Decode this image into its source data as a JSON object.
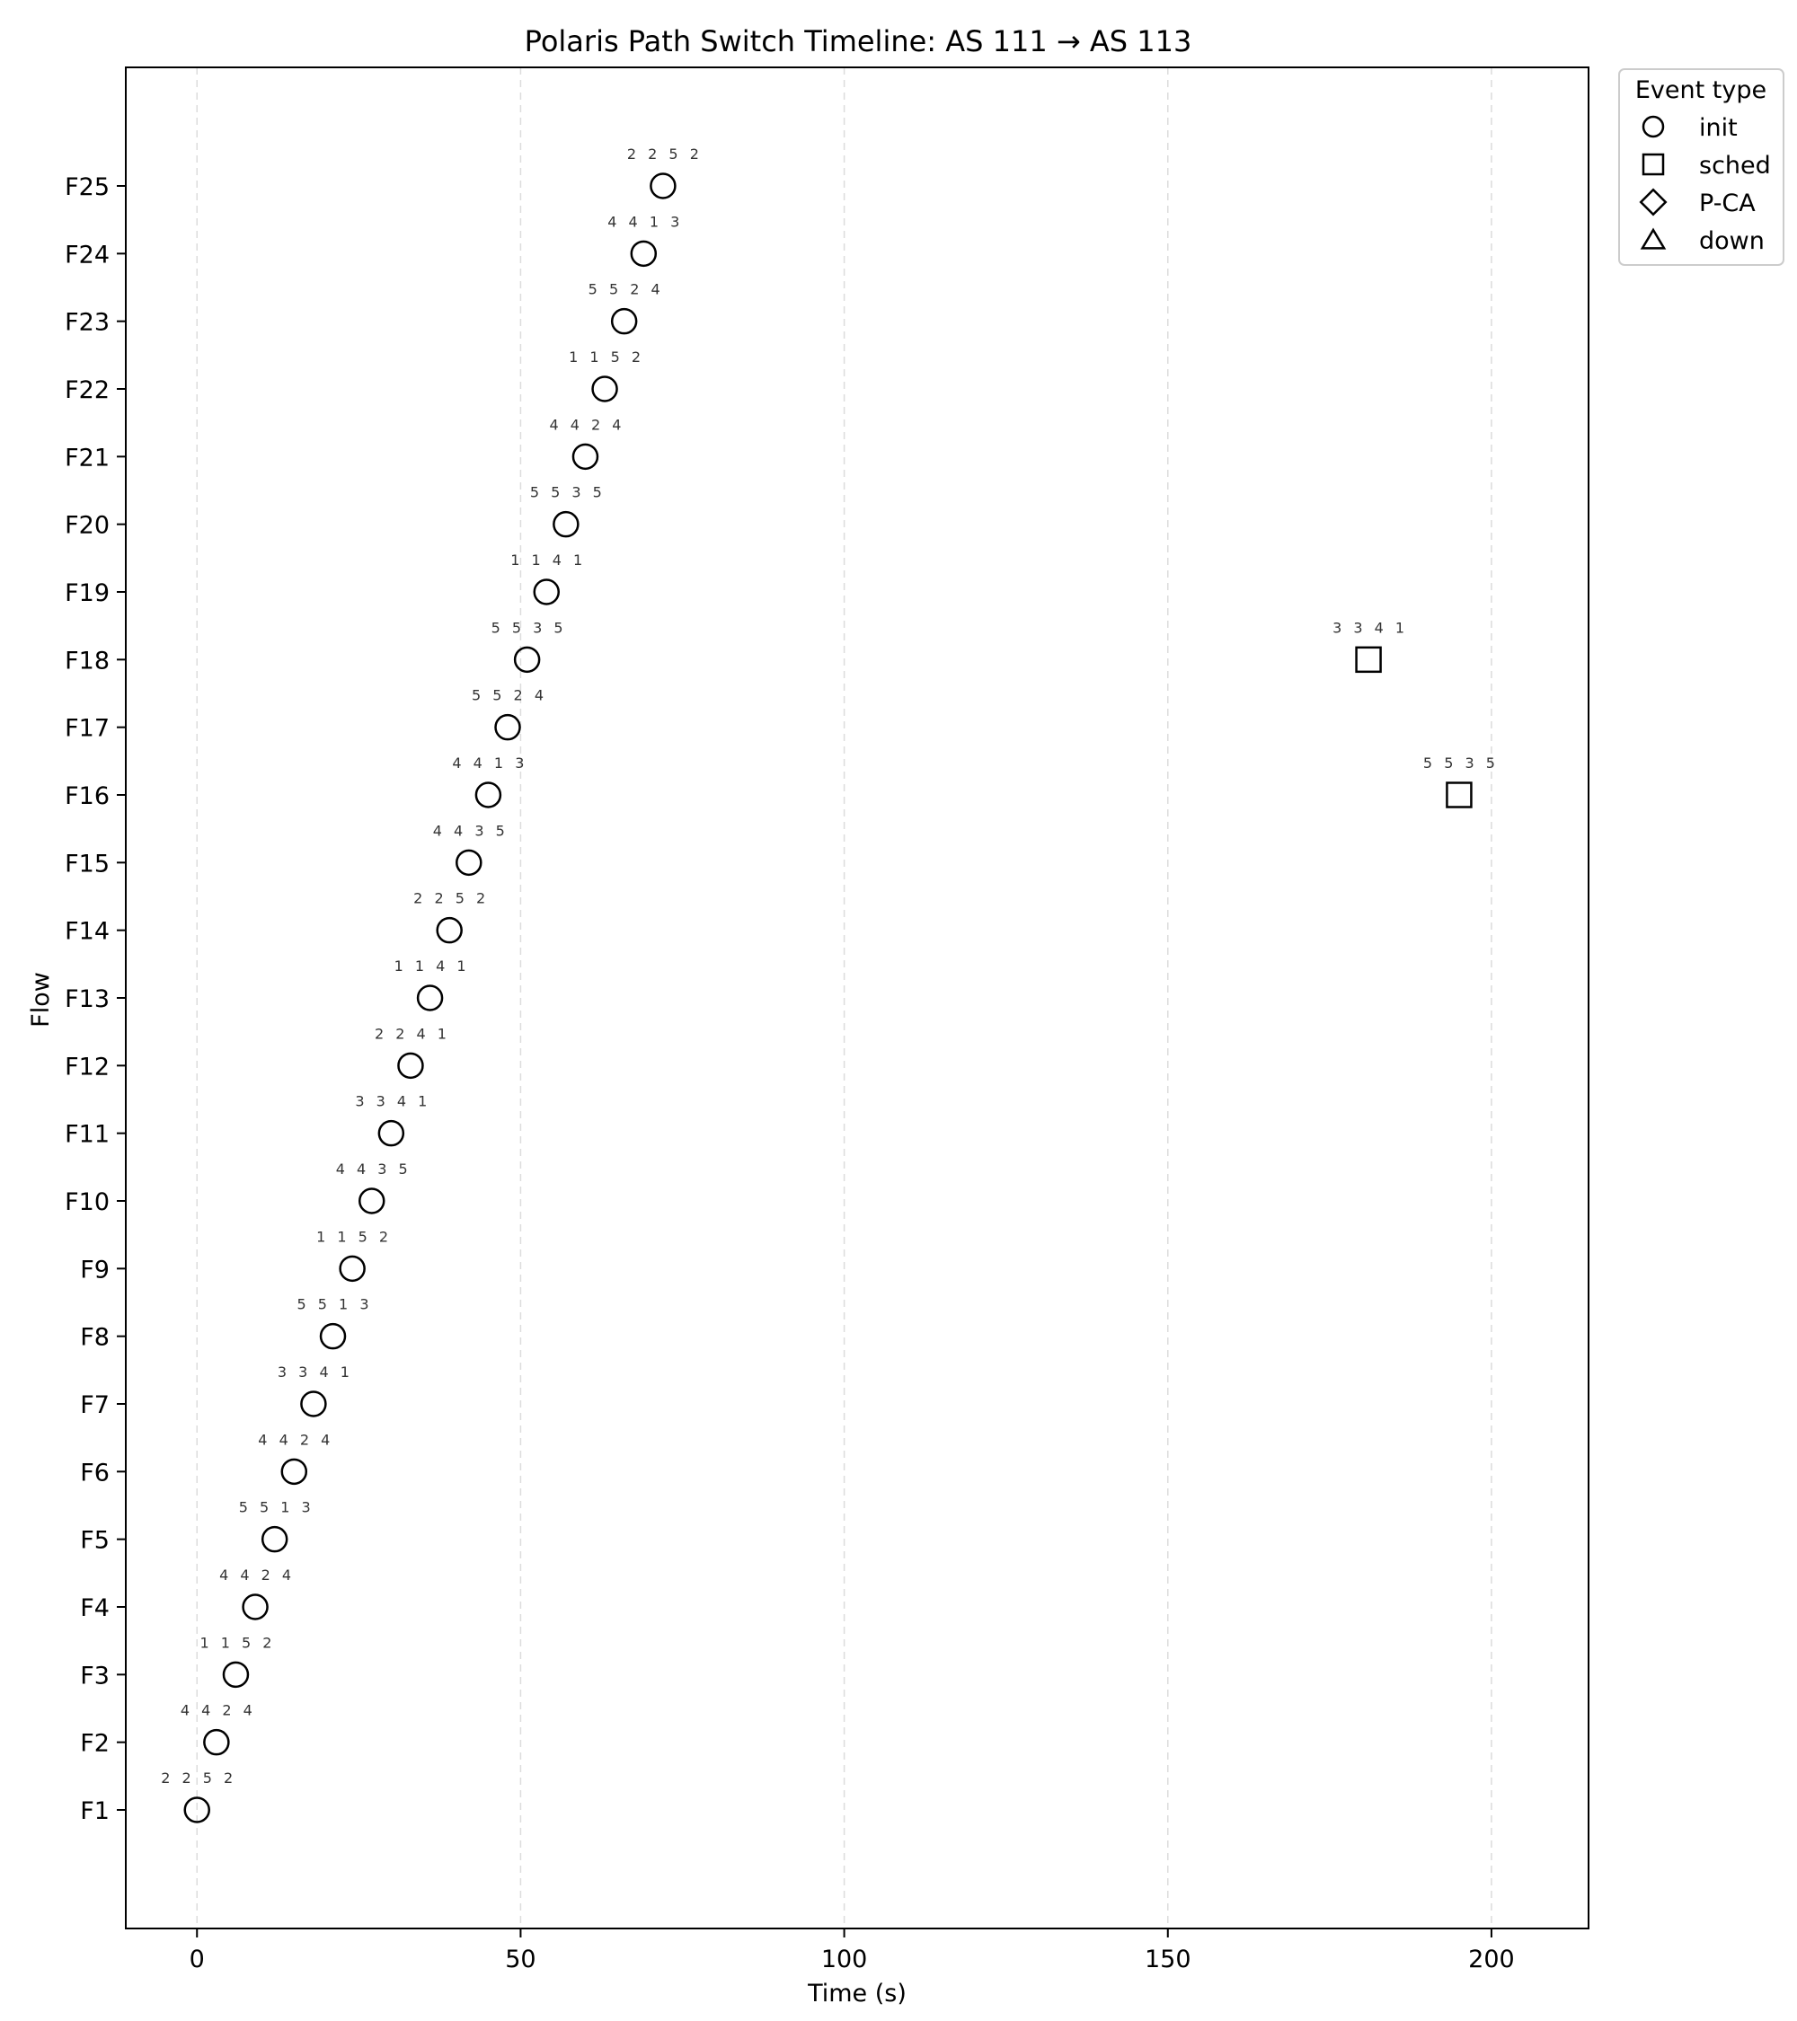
{
  "chart_data": {
    "type": "scatter",
    "title": "Polaris Path Switch Timeline: AS 111 → AS 113",
    "xlabel": "Time (s)",
    "ylabel": "Flow",
    "xlim": [
      -11,
      215
    ],
    "xticks": [
      0,
      50,
      100,
      150,
      200
    ],
    "xtick_labels": [
      "0",
      "50",
      "100",
      "150",
      "200"
    ],
    "grid": "vertical dashed",
    "flows": [
      "F1",
      "F2",
      "F3",
      "F4",
      "F5",
      "F6",
      "F7",
      "F8",
      "F9",
      "F10",
      "F11",
      "F12",
      "F13",
      "F14",
      "F15",
      "F16",
      "F17",
      "F18",
      "F19",
      "F20",
      "F21",
      "F22",
      "F23",
      "F24",
      "F25"
    ],
    "legend": {
      "title": "Event type",
      "placement": "outside-top-right",
      "entries": [
        {
          "label": "init",
          "marker": "circle"
        },
        {
          "label": "sched",
          "marker": "square"
        },
        {
          "label": "P-CA",
          "marker": "diamond"
        },
        {
          "label": "down",
          "marker": "triangle"
        }
      ]
    },
    "series": [
      {
        "name": "init",
        "marker": "circle",
        "points": [
          {
            "x": 0,
            "flow": "F1",
            "label": "2 2 5 2"
          },
          {
            "x": 3,
            "flow": "F2",
            "label": "4 4 2 4"
          },
          {
            "x": 6,
            "flow": "F3",
            "label": "1 1 5 2"
          },
          {
            "x": 9,
            "flow": "F4",
            "label": "4 4 2 4"
          },
          {
            "x": 12,
            "flow": "F5",
            "label": "5 5 1 3"
          },
          {
            "x": 15,
            "flow": "F6",
            "label": "4 4 2 4"
          },
          {
            "x": 18,
            "flow": "F7",
            "label": "3 3 4 1"
          },
          {
            "x": 21,
            "flow": "F8",
            "label": "5 5 1 3"
          },
          {
            "x": 24,
            "flow": "F9",
            "label": "1 1 5 2"
          },
          {
            "x": 27,
            "flow": "F10",
            "label": "4 4 3 5"
          },
          {
            "x": 30,
            "flow": "F11",
            "label": "3 3 4 1"
          },
          {
            "x": 33,
            "flow": "F12",
            "label": "2 2 4 1"
          },
          {
            "x": 36,
            "flow": "F13",
            "label": "1 1 4 1"
          },
          {
            "x": 39,
            "flow": "F14",
            "label": "2 2 5 2"
          },
          {
            "x": 42,
            "flow": "F15",
            "label": "4 4 3 5"
          },
          {
            "x": 45,
            "flow": "F16",
            "label": "4 4 1 3"
          },
          {
            "x": 48,
            "flow": "F17",
            "label": "5 5 2 4"
          },
          {
            "x": 51,
            "flow": "F18",
            "label": "5 5 3 5"
          },
          {
            "x": 54,
            "flow": "F19",
            "label": "1 1 4 1"
          },
          {
            "x": 57,
            "flow": "F20",
            "label": "5 5 3 5"
          },
          {
            "x": 60,
            "flow": "F21",
            "label": "4 4 2 4"
          },
          {
            "x": 63,
            "flow": "F22",
            "label": "1 1 5 2"
          },
          {
            "x": 66,
            "flow": "F23",
            "label": "5 5 2 4"
          },
          {
            "x": 69,
            "flow": "F24",
            "label": "4 4 1 3"
          },
          {
            "x": 72,
            "flow": "F25",
            "label": "2 2 5 2"
          }
        ]
      },
      {
        "name": "sched",
        "marker": "square",
        "points": [
          {
            "x": 181,
            "flow": "F18",
            "label": "3 3 4 1"
          },
          {
            "x": 195,
            "flow": "F16",
            "label": "5 5 3 5"
          }
        ]
      }
    ]
  }
}
